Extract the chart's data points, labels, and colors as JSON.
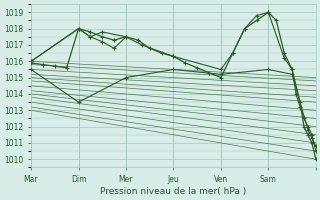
{
  "title": "",
  "xlabel": "Pression niveau de la mer( hPa )",
  "ylabel": "",
  "bg_color": "#d8ede8",
  "grid_color": "#a8c8c0",
  "line_color": "#2d5a27",
  "marker_color": "#2d5a27",
  "ylim": [
    1009.5,
    1019.5
  ],
  "yticks": [
    1010,
    1011,
    1012,
    1013,
    1014,
    1015,
    1016,
    1017,
    1018,
    1019
  ],
  "day_positions": [
    0,
    24,
    48,
    72,
    96,
    120,
    144
  ],
  "day_labels": [
    "Mar",
    "Dim",
    "Mer",
    "Jeu",
    "Ven",
    "Sam"
  ],
  "fan_lines": [
    {
      "x": [
        0,
        144
      ],
      "y": [
        1016.0,
        1015.0
      ]
    },
    {
      "x": [
        0,
        144
      ],
      "y": [
        1015.8,
        1014.8
      ]
    },
    {
      "x": [
        0,
        144
      ],
      "y": [
        1015.5,
        1014.5
      ]
    },
    {
      "x": [
        0,
        144
      ],
      "y": [
        1015.2,
        1014.2
      ]
    },
    {
      "x": [
        0,
        144
      ],
      "y": [
        1015.0,
        1013.8
      ]
    },
    {
      "x": [
        0,
        144
      ],
      "y": [
        1014.8,
        1013.5
      ]
    },
    {
      "x": [
        0,
        144
      ],
      "y": [
        1014.5,
        1013.0
      ]
    },
    {
      "x": [
        0,
        144
      ],
      "y": [
        1014.2,
        1012.5
      ]
    },
    {
      "x": [
        0,
        144
      ],
      "y": [
        1014.0,
        1012.0
      ]
    },
    {
      "x": [
        0,
        144
      ],
      "y": [
        1013.8,
        1011.5
      ]
    },
    {
      "x": [
        0,
        144
      ],
      "y": [
        1013.5,
        1011.0
      ]
    },
    {
      "x": [
        0,
        144
      ],
      "y": [
        1013.2,
        1010.5
      ]
    },
    {
      "x": [
        0,
        144
      ],
      "y": [
        1013.0,
        1010.0
      ]
    }
  ],
  "upper_line": {
    "x": [
      0,
      24,
      30,
      36,
      48,
      56,
      72,
      96,
      102,
      108,
      114,
      120,
      128,
      132,
      134,
      136,
      138,
      140,
      142,
      144
    ],
    "y": [
      1016.0,
      1018.0,
      1017.5,
      1017.8,
      1017.5,
      1017.0,
      1016.3,
      1015.5,
      1016.5,
      1018.0,
      1018.8,
      1019.0,
      1016.2,
      1015.5,
      1014.0,
      1013.2,
      1012.5,
      1012.0,
      1011.5,
      1010.5
    ]
  },
  "lower_line": {
    "x": [
      0,
      24,
      48,
      72,
      96,
      120,
      132,
      140,
      142,
      144
    ],
    "y": [
      1015.5,
      1013.5,
      1015.0,
      1015.5,
      1015.2,
      1015.5,
      1015.2,
      1011.8,
      1011.3,
      1010.8
    ]
  },
  "main_series": {
    "x": [
      0,
      6,
      12,
      18,
      24,
      30,
      36,
      42,
      48,
      54,
      60,
      66,
      72,
      78,
      84,
      90,
      96,
      102,
      108,
      114,
      120,
      124,
      128,
      132,
      136,
      138,
      140,
      142,
      144
    ],
    "y": [
      1015.9,
      1015.8,
      1015.7,
      1015.6,
      1018.0,
      1017.8,
      1017.5,
      1017.3,
      1017.5,
      1017.3,
      1016.8,
      1016.5,
      1016.3,
      1015.9,
      1015.6,
      1015.3,
      1015.0,
      1016.5,
      1018.0,
      1018.5,
      1019.0,
      1018.5,
      1016.5,
      1015.5,
      1013.5,
      1012.0,
      1011.5,
      1011.0,
      1010.0
    ]
  },
  "mid_line": {
    "x": [
      0,
      24,
      30,
      36,
      42,
      48
    ],
    "y": [
      1016.0,
      1018.0,
      1017.5,
      1017.2,
      1016.8,
      1017.5
    ]
  }
}
